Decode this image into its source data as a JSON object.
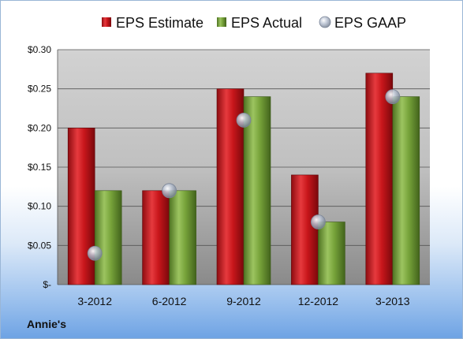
{
  "footer": {
    "company": "Annie's"
  },
  "colors": {
    "estimate": "#c8161b",
    "actual": "#77a33a",
    "gaap": "#aab4c6"
  },
  "chart_data": {
    "type": "bar",
    "categories": [
      "3-2012",
      "6-2012",
      "9-2012",
      "12-2012",
      "3-2013"
    ],
    "series": [
      {
        "name": "EPS Estimate",
        "kind": "bar",
        "values": [
          0.2,
          0.12,
          0.25,
          0.14,
          0.27
        ]
      },
      {
        "name": "EPS Actual",
        "kind": "bar",
        "values": [
          0.12,
          0.12,
          0.24,
          0.08,
          0.24
        ]
      },
      {
        "name": "EPS GAAP",
        "kind": "marker",
        "values": [
          0.04,
          0.12,
          0.21,
          0.08,
          0.24
        ]
      }
    ],
    "yticks": [
      0,
      0.05,
      0.1,
      0.15,
      0.2,
      0.25,
      0.3
    ],
    "ytick_labels": [
      "$-",
      "$0.05",
      "$0.10",
      "$0.15",
      "$0.20",
      "$0.25",
      "$0.30"
    ],
    "ylim": [
      0,
      0.3
    ],
    "legend_position": "top",
    "grid": true
  }
}
